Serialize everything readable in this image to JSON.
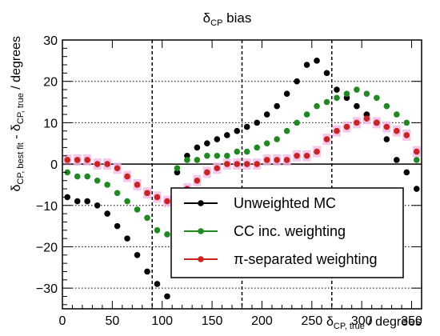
{
  "chart_data": {
    "type": "scatter",
    "title": "δ",
    "title_sub": "CP",
    "title_rest": " bias",
    "xlabel": {
      "main": "δ",
      "sub": "CP, true",
      "rest": " / degrees"
    },
    "ylabel": {
      "p1": "δ",
      "s1": "CP, best fit",
      "p2": " - δ",
      "s2": "CP, true",
      "p3": " / degrees"
    },
    "xlim": [
      0,
      360
    ],
    "ylim": [
      -35,
      30
    ],
    "x_ticks": [
      "0",
      "50",
      "100",
      "150",
      "200",
      "250",
      "300",
      "350"
    ],
    "y_ticks": [
      "−30",
      "−20",
      "−10",
      "0",
      "10",
      "20",
      "30"
    ],
    "grid": "horizontal dotted",
    "reference_lines": {
      "horizontal": [
        0
      ],
      "vertical_dashed": [
        90,
        180,
        270
      ]
    },
    "legend_position": "bottom-right",
    "series": [
      {
        "name": "Unweighted MC",
        "color": "#000000",
        "points": [
          [
            5,
            -8
          ],
          [
            15,
            -9
          ],
          [
            25,
            -9
          ],
          [
            35,
            -10
          ],
          [
            45,
            -12
          ],
          [
            55,
            -15
          ],
          [
            65,
            -18
          ],
          [
            75,
            -22
          ],
          [
            85,
            -26
          ],
          [
            95,
            -29
          ],
          [
            105,
            -32
          ],
          [
            115,
            -2
          ],
          [
            125,
            2
          ],
          [
            135,
            4
          ],
          [
            145,
            5
          ],
          [
            155,
            6
          ],
          [
            165,
            7
          ],
          [
            175,
            8
          ],
          [
            185,
            9
          ],
          [
            195,
            10
          ],
          [
            205,
            12
          ],
          [
            215,
            14
          ],
          [
            225,
            17
          ],
          [
            235,
            20
          ],
          [
            245,
            24
          ],
          [
            255,
            25
          ],
          [
            265,
            22
          ],
          [
            275,
            18
          ],
          [
            285,
            16
          ],
          [
            295,
            14
          ],
          [
            305,
            12
          ],
          [
            315,
            10
          ],
          [
            325,
            6
          ],
          [
            335,
            1
          ],
          [
            345,
            -2
          ],
          [
            355,
            -6
          ]
        ]
      },
      {
        "name": "CC inc. weighting",
        "color": "#1f8a1f",
        "points": [
          [
            5,
            -2
          ],
          [
            15,
            -3
          ],
          [
            25,
            -3
          ],
          [
            35,
            -4
          ],
          [
            45,
            -5
          ],
          [
            55,
            -7
          ],
          [
            65,
            -9
          ],
          [
            75,
            -11
          ],
          [
            85,
            -13
          ],
          [
            95,
            -16
          ],
          [
            105,
            -17
          ],
          [
            115,
            -1
          ],
          [
            125,
            1
          ],
          [
            135,
            1
          ],
          [
            145,
            2
          ],
          [
            155,
            2
          ],
          [
            165,
            2
          ],
          [
            175,
            3
          ],
          [
            185,
            3
          ],
          [
            195,
            4
          ],
          [
            205,
            5
          ],
          [
            215,
            6
          ],
          [
            225,
            8
          ],
          [
            235,
            10
          ],
          [
            245,
            12
          ],
          [
            255,
            14
          ],
          [
            265,
            15
          ],
          [
            275,
            16
          ],
          [
            285,
            17
          ],
          [
            295,
            18
          ],
          [
            305,
            17
          ],
          [
            315,
            16
          ],
          [
            325,
            14
          ],
          [
            335,
            12
          ],
          [
            345,
            10
          ],
          [
            355,
            1
          ]
        ]
      },
      {
        "name": "π-separated weighting",
        "color": "#cc2222",
        "points": [
          [
            5,
            1
          ],
          [
            15,
            1
          ],
          [
            25,
            1
          ],
          [
            35,
            0
          ],
          [
            45,
            0
          ],
          [
            55,
            -1
          ],
          [
            65,
            -3
          ],
          [
            75,
            -5
          ],
          [
            85,
            -7
          ],
          [
            95,
            -8
          ],
          [
            105,
            -9
          ],
          [
            115,
            -8
          ],
          [
            125,
            -6
          ],
          [
            135,
            -4
          ],
          [
            145,
            -2
          ],
          [
            155,
            -1
          ],
          [
            165,
            0
          ],
          [
            175,
            0
          ],
          [
            185,
            0
          ],
          [
            195,
            0
          ],
          [
            205,
            1
          ],
          [
            215,
            1
          ],
          [
            225,
            1
          ],
          [
            235,
            2
          ],
          [
            245,
            2
          ],
          [
            255,
            3
          ],
          [
            265,
            6
          ],
          [
            275,
            8
          ],
          [
            285,
            9
          ],
          [
            295,
            10
          ],
          [
            305,
            11
          ],
          [
            315,
            10
          ],
          [
            325,
            9
          ],
          [
            335,
            8
          ],
          [
            345,
            7
          ],
          [
            355,
            3
          ]
        ]
      }
    ]
  }
}
